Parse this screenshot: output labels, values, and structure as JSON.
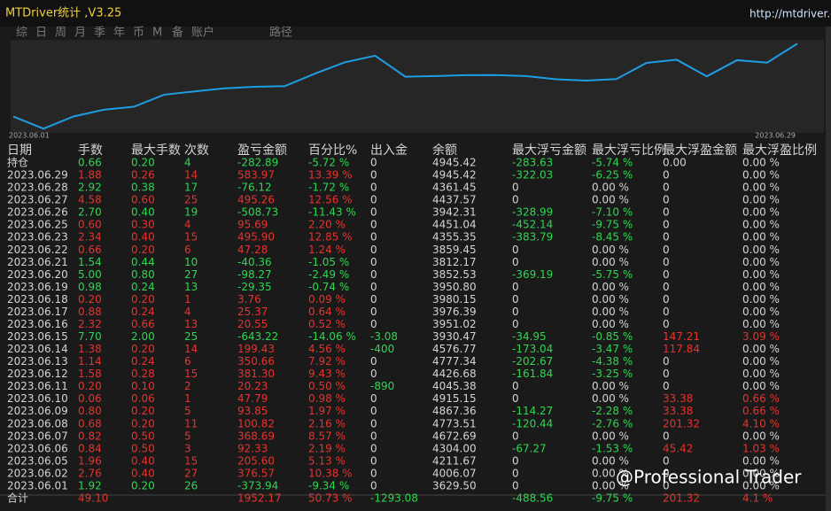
{
  "window": {
    "title": "MTDriver统计 ,V3.25",
    "link": "http://mtdriver.c",
    "tabs": [
      "综",
      "日",
      "周",
      "月",
      "季",
      "年",
      "币",
      "M",
      "备",
      "账户",
      "路径"
    ]
  },
  "chart_data": {
    "type": "line",
    "x_start_label": "2023.06.01",
    "x_end_label": "2023.06.29",
    "color": "#1f9de3",
    "ylim": [
      -500,
      2350
    ],
    "values": [
      0,
      -373.94,
      2.63,
      208.23,
      300.56,
      669.25,
      770.07,
      863.92,
      911.71,
      931.94,
      1313.24,
      1663.9,
      1863.33,
      1220.11,
      1240.66,
      1266.03,
      1269.79,
      1240.44,
      1142.17,
      1101.81,
      1149.09,
      1644.99,
      1740.68,
      1231.95,
      1727.21,
      1651.09,
      2235.06
    ]
  },
  "table": {
    "colors": {
      "up": "#e8322c",
      "down": "#2fd650",
      "neutral": "#d4d4d4"
    },
    "headers": [
      "日期",
      "手数",
      "最大手数",
      "次数",
      "盈亏金额",
      "百分比%",
      "出入金",
      "余额",
      "最大浮亏金额",
      "最大浮亏比例",
      "最大浮盈金额",
      "最大浮盈比例"
    ],
    "rows": [
      {
        "tone": "down",
        "cells": [
          "持仓",
          "0.66",
          "0.20",
          "4",
          "-282.89",
          "-5.72 %",
          "0",
          "4945.42",
          "-283.63",
          "-5.74 %",
          "0.00",
          "0.00 %"
        ]
      },
      {
        "tone": "up",
        "cells": [
          "2023.06.29",
          "1.88",
          "0.26",
          "14",
          "583.97",
          "13.39 %",
          "0",
          "4945.42",
          "-322.03",
          "-6.25 %",
          "0",
          "0.00 %"
        ]
      },
      {
        "tone": "down",
        "cells": [
          "2023.06.28",
          "2.92",
          "0.38",
          "17",
          "-76.12",
          "-1.72 %",
          "0",
          "4361.45",
          "0",
          "0.00 %",
          "0",
          "0.00 %"
        ]
      },
      {
        "tone": "up",
        "cells": [
          "2023.06.27",
          "4.58",
          "0.60",
          "25",
          "495.26",
          "12.56 %",
          "0",
          "4437.57",
          "0",
          "0.00 %",
          "0",
          "0.00 %"
        ]
      },
      {
        "tone": "down",
        "cells": [
          "2023.06.26",
          "2.70",
          "0.40",
          "19",
          "-508.73",
          "-11.43 %",
          "0",
          "3942.31",
          "-328.99",
          "-7.10 %",
          "0",
          "0.00 %"
        ]
      },
      {
        "tone": "up",
        "cells": [
          "2023.06.25",
          "0.60",
          "0.30",
          "4",
          "95.69",
          "2.20 %",
          "0",
          "4451.04",
          "-452.14",
          "-9.75 %",
          "0",
          "0.00 %"
        ]
      },
      {
        "tone": "up",
        "cells": [
          "2023.06.23",
          "2.34",
          "0.40",
          "15",
          "495.90",
          "12.85 %",
          "0",
          "4355.35",
          "-383.79",
          "-8.45 %",
          "0",
          "0.00 %"
        ]
      },
      {
        "tone": "up",
        "cells": [
          "2023.06.22",
          "0.66",
          "0.20",
          "6",
          "47.28",
          "1.24 %",
          "0",
          "3859.45",
          "0",
          "0.00 %",
          "0",
          "0.00 %"
        ]
      },
      {
        "tone": "down",
        "cells": [
          "2023.06.21",
          "1.54",
          "0.44",
          "10",
          "-40.36",
          "-1.05 %",
          "0",
          "3812.17",
          "0",
          "0.00 %",
          "0",
          "0.00 %"
        ]
      },
      {
        "tone": "down",
        "cells": [
          "2023.06.20",
          "5.00",
          "0.80",
          "27",
          "-98.27",
          "-2.49 %",
          "0",
          "3852.53",
          "-369.19",
          "-5.75 %",
          "0",
          "0.00 %"
        ]
      },
      {
        "tone": "down",
        "cells": [
          "2023.06.19",
          "0.98",
          "0.24",
          "13",
          "-29.35",
          "-0.74 %",
          "0",
          "3950.80",
          "0",
          "0.00 %",
          "0",
          "0.00 %"
        ]
      },
      {
        "tone": "up",
        "cells": [
          "2023.06.18",
          "0.20",
          "0.20",
          "1",
          "3.76",
          "0.09 %",
          "0",
          "3980.15",
          "0",
          "0.00 %",
          "0",
          "0.00 %"
        ]
      },
      {
        "tone": "up",
        "cells": [
          "2023.06.17",
          "0.88",
          "0.24",
          "4",
          "25.37",
          "0.64 %",
          "0",
          "3976.39",
          "0",
          "0.00 %",
          "0",
          "0.00 %"
        ]
      },
      {
        "tone": "up",
        "cells": [
          "2023.06.16",
          "2.32",
          "0.66",
          "13",
          "20.55",
          "0.52 %",
          "0",
          "3951.02",
          "0",
          "0.00 %",
          "0",
          "0.00 %"
        ]
      },
      {
        "tone": "down",
        "cells": [
          "2023.06.15",
          "7.70",
          "2.00",
          "25",
          "-643.22",
          "-14.06 %",
          "-3.08",
          "3930.47",
          "-34.95",
          "-0.85 %",
          "147.21",
          "3.09 %"
        ]
      },
      {
        "tone": "up",
        "cells": [
          "2023.06.14",
          "1.38",
          "0.20",
          "14",
          "199.43",
          "4.56 %",
          "-400",
          "4576.77",
          "-173.04",
          "-3.47 %",
          "117.84",
          "0.00 %"
        ]
      },
      {
        "tone": "up",
        "cells": [
          "2023.06.13",
          "1.14",
          "0.24",
          "6",
          "350.66",
          "7.92 %",
          "0",
          "4777.34",
          "-202.67",
          "-4.38 %",
          "0",
          "0.00 %"
        ]
      },
      {
        "tone": "up",
        "cells": [
          "2023.06.12",
          "1.58",
          "0.28",
          "15",
          "381.30",
          "9.43 %",
          "0",
          "4426.68",
          "-161.84",
          "-3.25 %",
          "0",
          "0.00 %"
        ]
      },
      {
        "tone": "up",
        "cells": [
          "2023.06.11",
          "0.20",
          "0.10",
          "2",
          "20.23",
          "0.50 %",
          "-890",
          "4045.38",
          "0",
          "0.00 %",
          "0",
          "0.00 %"
        ]
      },
      {
        "tone": "up",
        "cells": [
          "2023.06.10",
          "0.06",
          "0.06",
          "1",
          "47.79",
          "0.98 %",
          "0",
          "4915.15",
          "0",
          "0.00 %",
          "33.38",
          "0.66 %"
        ]
      },
      {
        "tone": "up",
        "cells": [
          "2023.06.09",
          "0.80",
          "0.20",
          "5",
          "93.85",
          "1.97 %",
          "0",
          "4867.36",
          "-114.27",
          "-2.28 %",
          "33.38",
          "0.66 %"
        ]
      },
      {
        "tone": "up",
        "cells": [
          "2023.06.08",
          "0.68",
          "0.20",
          "11",
          "100.82",
          "2.16 %",
          "0",
          "4773.51",
          "-120.44",
          "-2.76 %",
          "201.32",
          "4.10 %"
        ]
      },
      {
        "tone": "up",
        "cells": [
          "2023.06.07",
          "0.82",
          "0.50",
          "5",
          "368.69",
          "8.57 %",
          "0",
          "4672.69",
          "0",
          "0.00 %",
          "0",
          "0.00 %"
        ]
      },
      {
        "tone": "up",
        "cells": [
          "2023.06.06",
          "0.84",
          "0.50",
          "3",
          "92.33",
          "2.19 %",
          "0",
          "4304.00",
          "-67.27",
          "-1.53 %",
          "45.42",
          "1.03 %"
        ]
      },
      {
        "tone": "up",
        "cells": [
          "2023.06.05",
          "1.96",
          "0.40",
          "15",
          "205.60",
          "5.13 %",
          "0",
          "4211.67",
          "0",
          "0.00 %",
          "0",
          "0.00 %"
        ]
      },
      {
        "tone": "up",
        "cells": [
          "2023.06.02",
          "2.76",
          "0.40",
          "27",
          "376.57",
          "10.38 %",
          "0",
          "4006.07",
          "0",
          "0.00 %",
          "0",
          "0.00 %"
        ]
      },
      {
        "tone": "down",
        "cells": [
          "2023.06.01",
          "1.92",
          "0.20",
          "26",
          "-373.94",
          "-9.34 %",
          "0",
          "3629.50",
          "0",
          "0.00 %",
          "0",
          "0.00 %"
        ]
      },
      {
        "tone": "up",
        "cells": [
          "合计",
          "49.10",
          null,
          null,
          "1952.17",
          "50.73 %",
          "-1293.08",
          null,
          "-488.56",
          "-9.75 %",
          "201.32",
          "4.1 %"
        ]
      }
    ]
  },
  "watermark": "@Professional Trader"
}
